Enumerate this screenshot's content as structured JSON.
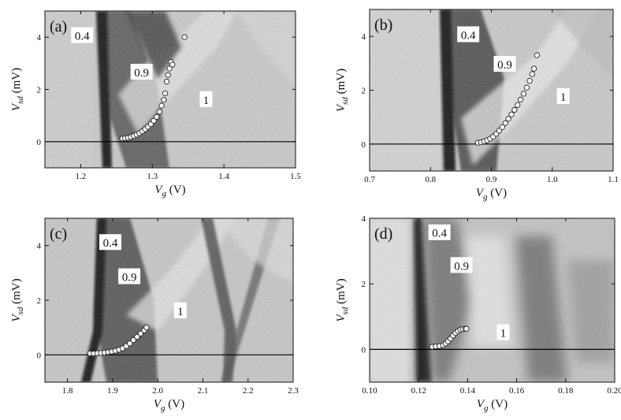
{
  "chart_data": [
    {
      "type": "scatter",
      "panel_label": "(a)",
      "xlabel": "V_g (V)",
      "xlabel_main": "V",
      "xlabel_sub": "g",
      "xlabel_unit": " (V)",
      "ylabel": "V_sd (mV)",
      "ylabel_main": "V",
      "ylabel_sub": "sd",
      "ylabel_unit": " (mV)",
      "xlim": [
        1.15,
        1.5
      ],
      "ylim": [
        -1,
        5
      ],
      "xticks": [
        1.2,
        1.3,
        1.4,
        1.5
      ],
      "xtick_labels": [
        "1.2",
        "1.3",
        "1.4",
        "1.5"
      ],
      "yticks": [
        0,
        2,
        4
      ],
      "ytick_labels": [
        "0",
        "2",
        "4"
      ],
      "hline": 0,
      "region_labels": [
        {
          "text": "0.4",
          "x": 1.202,
          "y": 4.05
        },
        {
          "text": "0.9",
          "x": 1.285,
          "y": 2.65
        },
        {
          "text": "1",
          "x": 1.375,
          "y": 1.6
        }
      ],
      "points": [
        [
          1.258,
          0.12
        ],
        [
          1.262,
          0.13
        ],
        [
          1.266,
          0.15
        ],
        [
          1.27,
          0.18
        ],
        [
          1.274,
          0.22
        ],
        [
          1.278,
          0.27
        ],
        [
          1.282,
          0.33
        ],
        [
          1.286,
          0.4
        ],
        [
          1.29,
          0.48
        ],
        [
          1.294,
          0.57
        ],
        [
          1.298,
          0.67
        ],
        [
          1.302,
          0.8
        ],
        [
          1.306,
          0.95
        ],
        [
          1.31,
          1.15
        ],
        [
          1.313,
          1.38
        ],
        [
          1.316,
          1.6
        ],
        [
          1.318,
          1.85
        ],
        [
          1.32,
          2.3
        ],
        [
          1.322,
          2.55
        ],
        [
          1.324,
          2.8
        ],
        [
          1.326,
          3.05
        ],
        [
          1.328,
          2.95
        ],
        [
          1.345,
          4.0
        ]
      ]
    },
    {
      "type": "scatter",
      "panel_label": "(b)",
      "xlabel": "V_g (V)",
      "xlabel_main": "V",
      "xlabel_sub": "g",
      "xlabel_unit": " (V)",
      "ylabel": "V_sd (mV)",
      "ylabel_main": "V",
      "ylabel_sub": "sd",
      "ylabel_unit": " (mV)",
      "xlim": [
        0.7,
        1.1
      ],
      "ylim": [
        -1,
        5
      ],
      "xticks": [
        0.7,
        0.8,
        0.9,
        1.0,
        1.1
      ],
      "xtick_labels": [
        "0.7",
        "0.8",
        "0.9",
        "1.0",
        "1.1"
      ],
      "yticks": [
        0,
        2,
        4
      ],
      "ytick_labels": [
        "0",
        "2",
        "4"
      ],
      "hline": 0,
      "region_labels": [
        {
          "text": "0.4",
          "x": 0.862,
          "y": 4.05
        },
        {
          "text": "0.9",
          "x": 0.922,
          "y": 2.95
        },
        {
          "text": "1",
          "x": 1.018,
          "y": 1.75
        }
      ],
      "points": [
        [
          0.878,
          0.05
        ],
        [
          0.883,
          0.07
        ],
        [
          0.888,
          0.1
        ],
        [
          0.893,
          0.14
        ],
        [
          0.898,
          0.2
        ],
        [
          0.903,
          0.28
        ],
        [
          0.908,
          0.38
        ],
        [
          0.913,
          0.5
        ],
        [
          0.918,
          0.63
        ],
        [
          0.923,
          0.78
        ],
        [
          0.928,
          0.94
        ],
        [
          0.933,
          1.1
        ],
        [
          0.938,
          1.27
        ],
        [
          0.943,
          1.45
        ],
        [
          0.948,
          1.65
        ],
        [
          0.953,
          1.87
        ],
        [
          0.958,
          2.1
        ],
        [
          0.963,
          2.35
        ],
        [
          0.967,
          2.6
        ],
        [
          0.97,
          2.8
        ],
        [
          0.975,
          3.3
        ]
      ]
    },
    {
      "type": "scatter",
      "panel_label": "(c)",
      "xlabel": "V_g (V)",
      "xlabel_main": "V",
      "xlabel_sub": "g",
      "xlabel_unit": " (V)",
      "ylabel": "V_sd (mV)",
      "ylabel_main": "V",
      "ylabel_sub": "sd",
      "ylabel_unit": " (mV)",
      "xlim": [
        1.75,
        2.3
      ],
      "ylim": [
        -1,
        5
      ],
      "xticks": [
        1.8,
        1.9,
        2.0,
        2.1,
        2.2,
        2.3
      ],
      "xtick_labels": [
        "1.8",
        "1.9",
        "2.0",
        "2.1",
        "2.2",
        "2.3"
      ],
      "yticks": [
        0,
        2,
        4
      ],
      "ytick_labels": [
        "0",
        "2",
        "4"
      ],
      "hline": 0,
      "region_labels": [
        {
          "text": "0.4",
          "x": 1.895,
          "y": 4.1
        },
        {
          "text": "0.9",
          "x": 1.937,
          "y": 2.85
        },
        {
          "text": "1",
          "x": 2.05,
          "y": 1.6
        }
      ],
      "points": [
        [
          1.85,
          0.05
        ],
        [
          1.858,
          0.05
        ],
        [
          1.866,
          0.06
        ],
        [
          1.874,
          0.07
        ],
        [
          1.882,
          0.08
        ],
        [
          1.89,
          0.1
        ],
        [
          1.898,
          0.12
        ],
        [
          1.906,
          0.15
        ],
        [
          1.914,
          0.19
        ],
        [
          1.922,
          0.24
        ],
        [
          1.93,
          0.32
        ],
        [
          1.938,
          0.42
        ],
        [
          1.946,
          0.54
        ],
        [
          1.954,
          0.66
        ],
        [
          1.962,
          0.78
        ],
        [
          1.97,
          0.9
        ],
        [
          1.975,
          1.0
        ]
      ]
    },
    {
      "type": "scatter",
      "panel_label": "(d)",
      "xlabel": "V_g (V)",
      "xlabel_main": "V",
      "xlabel_sub": "g",
      "xlabel_unit": " (V)",
      "ylabel": "V_sd (mV)",
      "ylabel_main": "V",
      "ylabel_sub": "sd",
      "ylabel_unit": " (mV)",
      "xlim": [
        0.1,
        0.2
      ],
      "ylim": [
        -1,
        4
      ],
      "xticks": [
        0.1,
        0.12,
        0.14,
        0.16,
        0.18,
        0.2
      ],
      "xtick_labels": [
        "0.10",
        "0.12",
        "0.14",
        "0.16",
        "0.18",
        "0.20"
      ],
      "yticks": [
        0,
        2,
        4
      ],
      "ytick_labels": [
        "0",
        "2",
        "4"
      ],
      "hline": 0,
      "region_labels": [
        {
          "text": "0.4",
          "x": 0.1285,
          "y": 3.55
        },
        {
          "text": "0.9",
          "x": 0.1375,
          "y": 2.55
        },
        {
          "text": "1",
          "x": 0.1545,
          "y": 0.5
        }
      ],
      "points": [
        [
          0.1255,
          0.08
        ],
        [
          0.127,
          0.09
        ],
        [
          0.1285,
          0.1
        ],
        [
          0.13,
          0.13
        ],
        [
          0.131,
          0.18
        ],
        [
          0.132,
          0.25
        ],
        [
          0.133,
          0.33
        ],
        [
          0.134,
          0.42
        ],
        [
          0.135,
          0.5
        ],
        [
          0.136,
          0.56
        ],
        [
          0.137,
          0.6
        ],
        [
          0.138,
          0.62
        ],
        [
          0.139,
          0.63
        ],
        [
          0.1395,
          0.63
        ]
      ]
    }
  ]
}
